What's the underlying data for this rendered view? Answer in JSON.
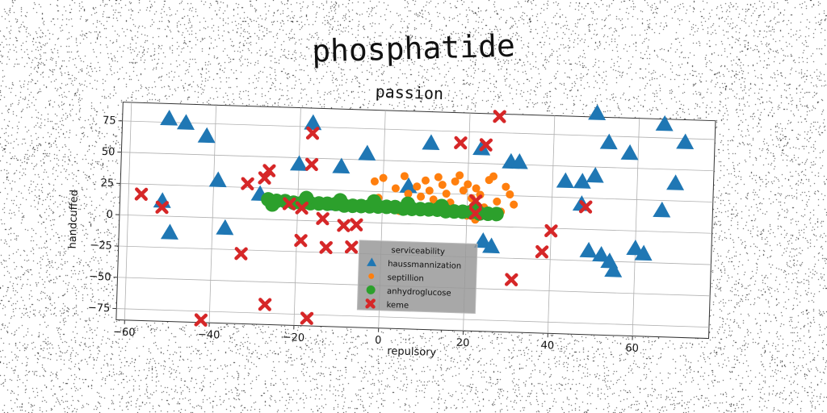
{
  "figure": {
    "suptitle": "phosphatide"
  },
  "chart_data": {
    "type": "scatter",
    "title": "passion",
    "xlabel": "repulsory",
    "ylabel": "handcuffed",
    "xlim": [
      -62,
      78
    ],
    "ylim": [
      -84,
      90
    ],
    "xticks": [
      -60,
      -40,
      -20,
      0,
      20,
      40,
      60
    ],
    "yticks": [
      -75,
      -50,
      -25,
      0,
      25,
      50,
      75
    ],
    "xtick_labels": [
      "−60",
      "−40",
      "−20",
      "0",
      "20",
      "40",
      "60"
    ],
    "ytick_labels": [
      "−75",
      "−50",
      "−25",
      "0",
      "25",
      "50",
      "75"
    ],
    "grid": true,
    "legend": {
      "title": "serviceability",
      "placement": "lower-center",
      "background": "#999999"
    },
    "series": [
      {
        "name": "haussmannization",
        "marker": "triangle",
        "color": "#1f77b4",
        "points": [
          [
            -51,
            78
          ],
          [
            -47,
            75
          ],
          [
            -42,
            65
          ],
          [
            -39,
            30
          ],
          [
            -52,
            12
          ],
          [
            -50,
            -13
          ],
          [
            -37,
            -8
          ],
          [
            -29,
            20
          ],
          [
            -20,
            45
          ],
          [
            -17,
            78
          ],
          [
            -10,
            44
          ],
          [
            -11,
            14
          ],
          [
            -4,
            55
          ],
          [
            6,
            30
          ],
          [
            11,
            65
          ],
          [
            23,
            62
          ],
          [
            30,
            52
          ],
          [
            32,
            52
          ],
          [
            24,
            -12
          ],
          [
            26,
            -16
          ],
          [
            50,
            93
          ],
          [
            53,
            70
          ],
          [
            58,
            62
          ],
          [
            66,
            86
          ],
          [
            71,
            72
          ],
          [
            69,
            39
          ],
          [
            66,
            17
          ],
          [
            47,
            20
          ],
          [
            43,
            38
          ],
          [
            47,
            38
          ],
          [
            50,
            43
          ],
          [
            49,
            -17
          ],
          [
            52,
            -20
          ],
          [
            54,
            -25
          ],
          [
            55,
            -32
          ],
          [
            60,
            -14
          ],
          [
            62,
            -18
          ]
        ]
      },
      {
        "name": "septillion",
        "marker": "circle",
        "color": "#ff7f0e",
        "points": [
          [
            -2,
            33
          ],
          [
            0,
            36
          ],
          [
            3,
            28
          ],
          [
            5,
            38
          ],
          [
            6,
            24
          ],
          [
            8,
            30
          ],
          [
            9,
            22
          ],
          [
            10,
            35
          ],
          [
            11,
            27
          ],
          [
            12,
            20
          ],
          [
            13,
            38
          ],
          [
            14,
            32
          ],
          [
            15,
            25
          ],
          [
            16,
            18
          ],
          [
            17,
            35
          ],
          [
            18,
            40
          ],
          [
            19,
            28
          ],
          [
            20,
            33
          ],
          [
            21,
            22
          ],
          [
            22,
            30
          ],
          [
            23,
            25
          ],
          [
            24,
            15
          ],
          [
            25,
            37
          ],
          [
            26,
            40
          ],
          [
            27,
            20
          ],
          [
            28,
            12
          ],
          [
            29,
            32
          ],
          [
            30,
            26
          ],
          [
            31,
            18
          ],
          [
            22,
            5
          ],
          [
            -1,
            20
          ],
          [
            2,
            14
          ],
          [
            4,
            10
          ],
          [
            16,
            12
          ],
          [
            20,
            8
          ]
        ]
      },
      {
        "name": "anhydroglucose",
        "marker": "circle",
        "color": "#2ca02c",
        "points": [
          [
            -27,
            16
          ],
          [
            -25,
            15
          ],
          [
            -23,
            15
          ],
          [
            -21,
            14
          ],
          [
            -19,
            14
          ],
          [
            -17,
            14
          ],
          [
            -15,
            14
          ],
          [
            -13,
            14
          ],
          [
            -11,
            14
          ],
          [
            -9,
            13
          ],
          [
            -7,
            13
          ],
          [
            -5,
            13
          ],
          [
            -3,
            13
          ],
          [
            -1,
            13
          ],
          [
            1,
            13
          ],
          [
            3,
            13
          ],
          [
            5,
            12
          ],
          [
            7,
            12
          ],
          [
            9,
            12
          ],
          [
            11,
            12
          ],
          [
            13,
            12
          ],
          [
            15,
            11
          ],
          [
            17,
            11
          ],
          [
            19,
            11
          ],
          [
            21,
            11
          ],
          [
            23,
            10
          ],
          [
            25,
            10
          ],
          [
            27,
            10
          ],
          [
            -26,
            12
          ],
          [
            -18,
            18
          ],
          [
            -10,
            17
          ],
          [
            -2,
            17
          ],
          [
            6,
            16
          ],
          [
            14,
            15
          ],
          [
            22,
            14
          ]
        ]
      },
      {
        "name": "keme",
        "marker": "x",
        "color": "#d62728",
        "points": [
          [
            -57,
            17
          ],
          [
            -52,
            7
          ],
          [
            -32,
            28
          ],
          [
            -28,
            33
          ],
          [
            -27,
            39
          ],
          [
            -17,
            45
          ],
          [
            -17,
            70
          ],
          [
            -22,
            13
          ],
          [
            -19,
            10
          ],
          [
            -14,
            2
          ],
          [
            -9,
            -3
          ],
          [
            -6,
            -2
          ],
          [
            -19,
            -16
          ],
          [
            -13,
            -21
          ],
          [
            -7,
            -20
          ],
          [
            -33,
            -28
          ],
          [
            -27,
            -68
          ],
          [
            -17,
            -78
          ],
          [
            -42,
            -82
          ],
          [
            18,
            66
          ],
          [
            24,
            65
          ],
          [
            27,
            88
          ],
          [
            22,
            20
          ],
          [
            22,
            10
          ],
          [
            31,
            -42
          ],
          [
            38,
            -19
          ],
          [
            40,
            -2
          ],
          [
            48,
            18
          ]
        ]
      }
    ]
  }
}
